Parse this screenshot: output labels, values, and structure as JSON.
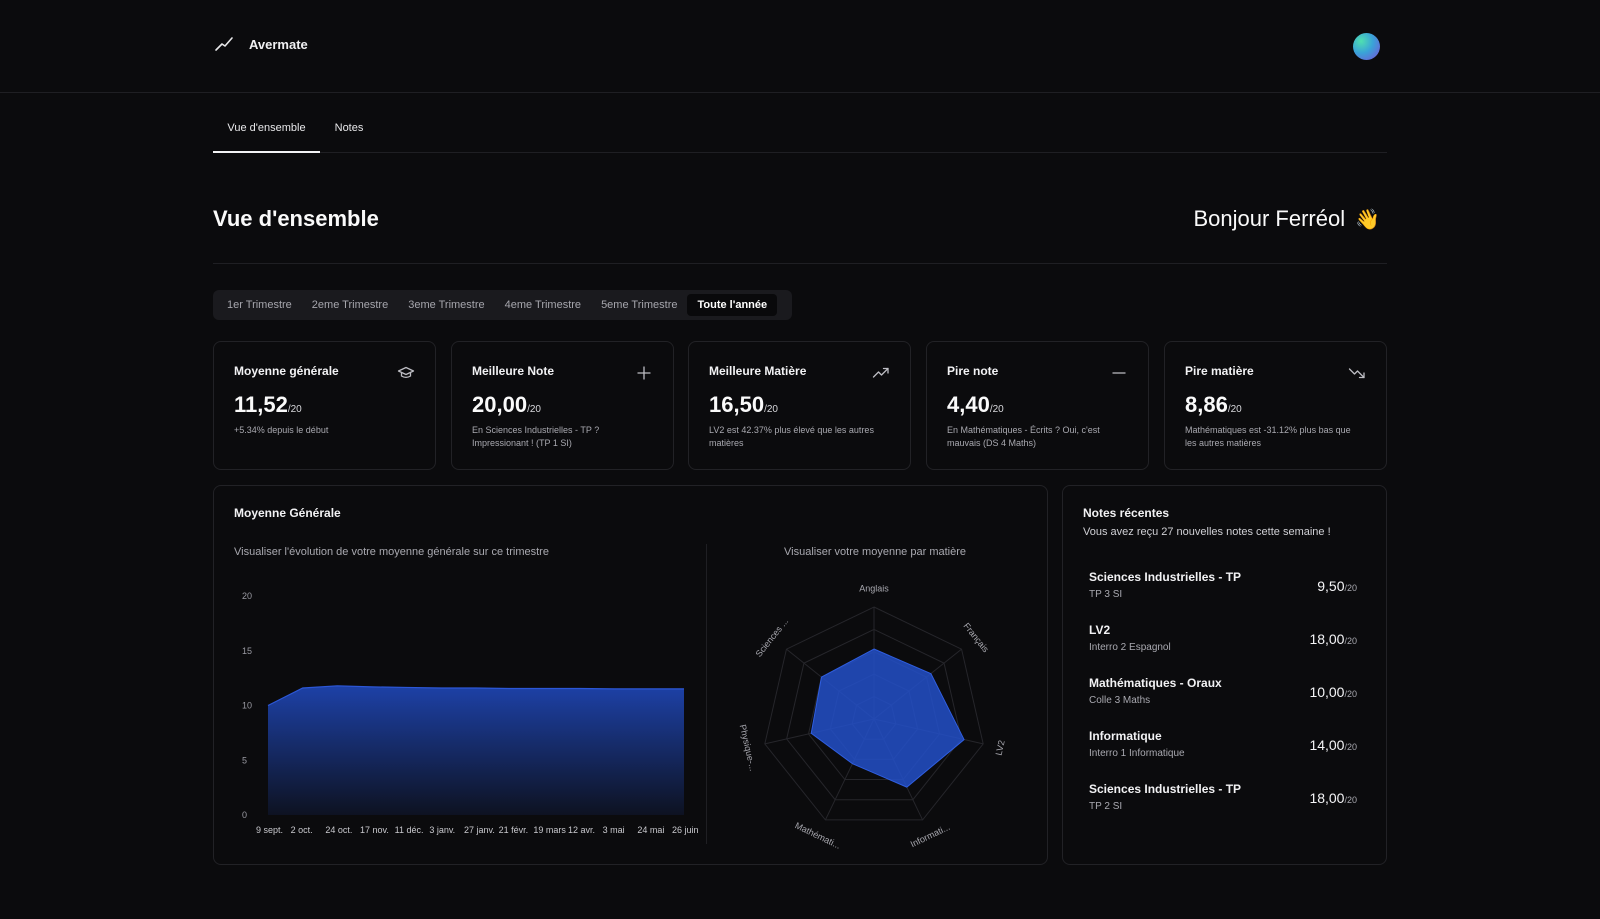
{
  "app": {
    "name": "Avermate"
  },
  "tabs": [
    {
      "label": "Vue d'ensemble",
      "active": true
    },
    {
      "label": "Notes",
      "active": false
    }
  ],
  "header": {
    "title": "Vue d'ensemble",
    "greeting": "Bonjour Ferréol",
    "greeting_emoji": "👋"
  },
  "periods": [
    "1er Trimestre",
    "2eme Trimestre",
    "3eme Trimestre",
    "4eme Trimestre",
    "5eme Trimestre",
    "Toute l'année"
  ],
  "selected_period": "Toute l'année",
  "cards": [
    {
      "title": "Moyenne générale",
      "value": "11,52",
      "suffix": "/20",
      "line1": "+5.34% depuis le début",
      "line2": "",
      "icon": "graduation-cap-icon"
    },
    {
      "title": "Meilleure Note",
      "value": "20,00",
      "suffix": "/20",
      "line1": "En Sciences Industrielles - TP ?",
      "line2": "Impressionant ! (TP 1 SI)",
      "icon": "plus-icon"
    },
    {
      "title": "Meilleure Matière",
      "value": "16,50",
      "suffix": "/20",
      "line1": "LV2 est 42.37% plus élevé que les autres",
      "line2": "matières",
      "icon": "trending-up-icon"
    },
    {
      "title": "Pire note",
      "value": "4,40",
      "suffix": "/20",
      "line1": "En Mathématiques - Écrits ? Oui, c'est",
      "line2": "mauvais (DS 4 Maths)",
      "icon": "minus-icon"
    },
    {
      "title": "Pire matière",
      "value": "8,86",
      "suffix": "/20",
      "line1": "Mathématiques est -31.12% plus bas que",
      "line2": "les autres matières",
      "icon": "trending-down-icon"
    }
  ],
  "average_panel": {
    "title": "Moyenne Générale",
    "area_caption": "Visualiser l'évolution de votre moyenne générale sur ce trimestre",
    "radar_caption": "Visualiser votre moyenne par matière"
  },
  "recent": {
    "title": "Notes récentes",
    "subtitle": "Vous avez reçu 27 nouvelles notes cette semaine !",
    "items": [
      {
        "subject": "Sciences Industrielles - TP",
        "desc": "TP 3 SI",
        "value": "9,50",
        "suffix": "/20"
      },
      {
        "subject": "LV2",
        "desc": "Interro 2 Espagnol",
        "value": "18,00",
        "suffix": "/20"
      },
      {
        "subject": "Mathématiques - Oraux",
        "desc": "Colle 3 Maths",
        "value": "10,00",
        "suffix": "/20"
      },
      {
        "subject": "Informatique",
        "desc": "Interro 1 Informatique",
        "value": "14,00",
        "suffix": "/20"
      },
      {
        "subject": "Sciences Industrielles - TP",
        "desc": "TP 2 SI",
        "value": "18,00",
        "suffix": "/20"
      }
    ]
  },
  "colors": {
    "accent": "#1f47b8",
    "background": "#0b0b0d"
  },
  "chart_data": [
    {
      "type": "area",
      "x": [
        "9 sept.",
        "2 oct.",
        "24 oct.",
        "17 nov.",
        "11 déc.",
        "3 janv.",
        "27 janv.",
        "21 févr.",
        "19 mars",
        "12 avr.",
        "3 mai",
        "24 mai",
        "26 juin"
      ],
      "values": [
        10.0,
        11.6,
        11.8,
        11.7,
        11.65,
        11.6,
        11.6,
        11.55,
        11.55,
        11.55,
        11.52,
        11.52,
        11.52
      ],
      "y_ticks": [
        0,
        5,
        10,
        15,
        20
      ],
      "ylim": [
        0,
        20
      ],
      "grid": false
    },
    {
      "type": "radar",
      "axes": [
        "Anglais",
        "Français",
        "LV2",
        "Informati...",
        "Mathémati...",
        "Physique-...",
        "Sciences ..."
      ],
      "values": [
        12.5,
        13.0,
        16.5,
        13.5,
        8.86,
        11.5,
        12.0
      ],
      "range": [
        0,
        20
      ]
    }
  ]
}
